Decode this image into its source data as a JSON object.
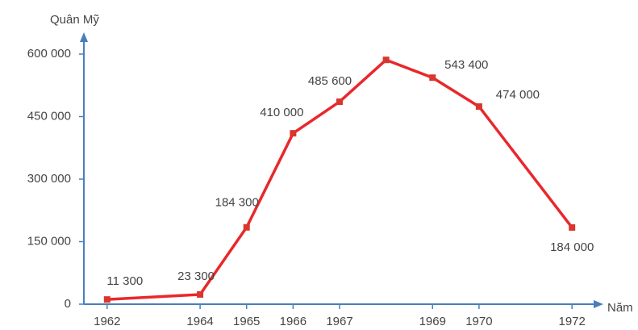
{
  "chart_data": {
    "type": "line",
    "y_label": "Quân Mỹ",
    "x_label": "Năm",
    "x": [
      1962,
      1964,
      1965,
      1966,
      1967,
      1968,
      1969,
      1970,
      1972
    ],
    "values": [
      11300,
      23300,
      184300,
      410000,
      485600,
      586000,
      543400,
      474000,
      184000
    ],
    "value_labels": [
      "11 300",
      "23 300",
      "184 300",
      "410 000",
      "485 600",
      null,
      "543 400",
      "474 000",
      "184 000"
    ],
    "color": "#e8282c",
    "marker_color": "#d9362e",
    "axis_color": "#4a7ebb",
    "xlim": [
      1961.5,
      1972.5
    ],
    "xticks": [
      1962,
      1964,
      1965,
      1966,
      1967,
      1969,
      1970,
      1972
    ],
    "ylim": [
      0,
      600000
    ],
    "yticks": [
      0,
      {
        "value": 150000,
        "label": "150 000"
      },
      {
        "value": 300000,
        "label": "300 000"
      },
      {
        "value": 450000,
        "label": "450 000"
      },
      {
        "value": 600000,
        "label": "600 000"
      }
    ]
  }
}
